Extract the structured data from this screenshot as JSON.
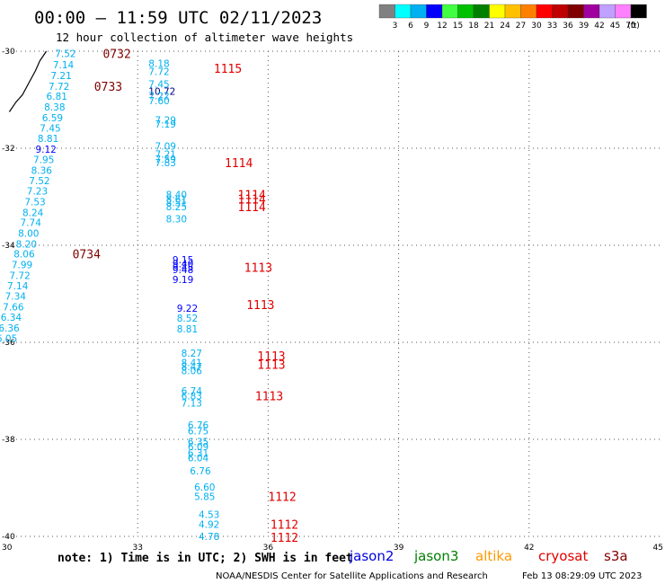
{
  "header": {
    "title": "00:00 – 11:59 UTC 02/11/2023",
    "subtitle": "12 hour collection of altimeter wave heights"
  },
  "colorbar": {
    "colors": [
      "#808080",
      "#00ffff",
      "#00b0f0",
      "#0000ff",
      "#40ff40",
      "#00c000",
      "#008000",
      "#ffff00",
      "#ffc000",
      "#ff8000",
      "#ff0000",
      "#c00000",
      "#800000",
      "#a000a0",
      "#c0a0ff",
      "#ff80ff",
      "#000000"
    ],
    "labels": [
      "3",
      "6",
      "9",
      "12",
      "15",
      "18",
      "21",
      "24",
      "27",
      "30",
      "33",
      "36",
      "39",
      "42",
      "45",
      "70"
    ],
    "unit": "(ft)"
  },
  "footer": {
    "note": "note: 1) Time is in UTC; 2) SWH is in feet",
    "credit": "NOAA/NESDIS Center for Satellite Applications and Research",
    "timestamp": "Feb 13 08:29:09 UTC 2023"
  },
  "legend": [
    {
      "name": "jason2",
      "color": "#0000e0"
    },
    {
      "name": "jason3",
      "color": "#008000"
    },
    {
      "name": "altika",
      "color": "#ff9900"
    },
    {
      "name": "cryosat",
      "color": "#e00000"
    },
    {
      "name": "s3a",
      "color": "#800000"
    }
  ],
  "chart_data": {
    "type": "scatter",
    "x_ticks": [
      "30",
      "33",
      "36",
      "39",
      "42",
      "45"
    ],
    "y_ticks": [
      "-30",
      "-32",
      "-34",
      "-36",
      "-38",
      "-40"
    ],
    "xlim": [
      30,
      45
    ],
    "ylim": [
      -40,
      -30
    ],
    "grid": true,
    "coastline": [
      [
        30.05,
        -31.25
      ],
      [
        30.2,
        -31.05
      ],
      [
        30.35,
        -30.9
      ],
      [
        30.5,
        -30.65
      ],
      [
        30.65,
        -30.4
      ],
      [
        30.75,
        -30.2
      ],
      [
        30.9,
        -30.0
      ]
    ],
    "swh_points": [
      {
        "x": 31.1,
        "y": -30.05,
        "v": "7.52",
        "c": "#00b0f0"
      },
      {
        "x": 31.05,
        "y": -30.28,
        "v": "7.14",
        "c": "#00b0f0"
      },
      {
        "x": 31.0,
        "y": -30.5,
        "v": "7.21",
        "c": "#00b0f0"
      },
      {
        "x": 30.95,
        "y": -30.72,
        "v": "7.72",
        "c": "#00b0f0"
      },
      {
        "x": 30.9,
        "y": -30.93,
        "v": "6.81",
        "c": "#00b0f0"
      },
      {
        "x": 30.85,
        "y": -31.15,
        "v": "8.38",
        "c": "#00b0f0"
      },
      {
        "x": 30.8,
        "y": -31.37,
        "v": "6.59",
        "c": "#00b0f0"
      },
      {
        "x": 30.75,
        "y": -31.58,
        "v": "7.45",
        "c": "#00b0f0"
      },
      {
        "x": 30.7,
        "y": -31.8,
        "v": "8.81",
        "c": "#00b0f0"
      },
      {
        "x": 30.65,
        "y": -32.02,
        "v": "9.12",
        "c": "#0000ff"
      },
      {
        "x": 30.6,
        "y": -32.23,
        "v": "7.95",
        "c": "#00b0f0"
      },
      {
        "x": 30.55,
        "y": -32.45,
        "v": "8.36",
        "c": "#00b0f0"
      },
      {
        "x": 30.5,
        "y": -32.67,
        "v": "7.52",
        "c": "#00b0f0"
      },
      {
        "x": 30.45,
        "y": -32.88,
        "v": "7.23",
        "c": "#00b0f0"
      },
      {
        "x": 30.4,
        "y": -33.1,
        "v": "7.53",
        "c": "#00b0f0"
      },
      {
        "x": 30.35,
        "y": -33.32,
        "v": "8.24",
        "c": "#00b0f0"
      },
      {
        "x": 30.3,
        "y": -33.53,
        "v": "7.74",
        "c": "#00b0f0"
      },
      {
        "x": 30.25,
        "y": -33.75,
        "v": "8.00",
        "c": "#00b0f0"
      },
      {
        "x": 30.2,
        "y": -33.97,
        "v": "8.20",
        "c": "#00b0f0"
      },
      {
        "x": 30.15,
        "y": -34.18,
        "v": "8.06",
        "c": "#00b0f0"
      },
      {
        "x": 30.1,
        "y": -34.4,
        "v": "7.99",
        "c": "#00b0f0"
      },
      {
        "x": 30.05,
        "y": -34.62,
        "v": "7.72",
        "c": "#00b0f0"
      },
      {
        "x": 30.0,
        "y": -34.83,
        "v": "7.14",
        "c": "#00b0f0"
      },
      {
        "x": 29.95,
        "y": -35.05,
        "v": "7.34",
        "c": "#00b0f0"
      },
      {
        "x": 29.9,
        "y": -35.27,
        "v": "7.66",
        "c": "#00b0f0"
      },
      {
        "x": 29.85,
        "y": -35.48,
        "v": "6.34",
        "c": "#00b0f0"
      },
      {
        "x": 29.8,
        "y": -35.7,
        "v": "6.36",
        "c": "#00b0f0"
      },
      {
        "x": 29.75,
        "y": -35.92,
        "v": "6.05",
        "c": "#00b0f0"
      },
      {
        "x": 33.25,
        "y": -30.25,
        "v": "8.18",
        "c": "#00b0f0"
      },
      {
        "x": 33.25,
        "y": -30.42,
        "v": "7.72",
        "c": "#00b0f0"
      },
      {
        "x": 33.25,
        "y": -30.68,
        "v": "7.45",
        "c": "#00b0f0"
      },
      {
        "x": 33.25,
        "y": -30.82,
        "v": "10.72",
        "c": "#000080"
      },
      {
        "x": 33.25,
        "y": -30.92,
        "v": "7.22",
        "c": "#00b0f0"
      },
      {
        "x": 33.25,
        "y": -31.02,
        "v": "7.60",
        "c": "#00b0f0"
      },
      {
        "x": 33.4,
        "y": -31.42,
        "v": "7.29",
        "c": "#00b0f0"
      },
      {
        "x": 33.4,
        "y": -31.5,
        "v": "7.19",
        "c": "#00b0f0"
      },
      {
        "x": 33.4,
        "y": -31.95,
        "v": "7.09",
        "c": "#00b0f0"
      },
      {
        "x": 33.4,
        "y": -32.12,
        "v": "7.21",
        "c": "#00b0f0"
      },
      {
        "x": 33.4,
        "y": -32.22,
        "v": "7.59",
        "c": "#00b0f0"
      },
      {
        "x": 33.4,
        "y": -32.3,
        "v": "7.83",
        "c": "#00b0f0"
      },
      {
        "x": 33.65,
        "y": -32.95,
        "v": "8.40",
        "c": "#00b0f0"
      },
      {
        "x": 33.65,
        "y": -33.05,
        "v": "8.61",
        "c": "#00b0f0"
      },
      {
        "x": 33.65,
        "y": -33.12,
        "v": "8.51",
        "c": "#00b0f0"
      },
      {
        "x": 33.65,
        "y": -33.2,
        "v": "8.25",
        "c": "#00b0f0"
      },
      {
        "x": 33.65,
        "y": -33.45,
        "v": "8.30",
        "c": "#00b0f0"
      },
      {
        "x": 33.8,
        "y": -34.3,
        "v": "9.15",
        "c": "#0000ff"
      },
      {
        "x": 33.8,
        "y": -34.38,
        "v": "9.40",
        "c": "#0000ff"
      },
      {
        "x": 33.8,
        "y": -34.45,
        "v": "9.45",
        "c": "#0000ff"
      },
      {
        "x": 33.8,
        "y": -34.5,
        "v": "9.48",
        "c": "#0000ff"
      },
      {
        "x": 33.8,
        "y": -34.7,
        "v": "9.19",
        "c": "#0000ff"
      },
      {
        "x": 33.9,
        "y": -35.3,
        "v": "9.22",
        "c": "#0000ff"
      },
      {
        "x": 33.9,
        "y": -35.5,
        "v": "8.52",
        "c": "#00b0f0"
      },
      {
        "x": 33.9,
        "y": -35.72,
        "v": "8.81",
        "c": "#00b0f0"
      },
      {
        "x": 34.0,
        "y": -36.22,
        "v": "8.27",
        "c": "#00b0f0"
      },
      {
        "x": 34.0,
        "y": -36.42,
        "v": "8.41",
        "c": "#00b0f0"
      },
      {
        "x": 34.0,
        "y": -36.5,
        "v": "8.47",
        "c": "#00b0f0"
      },
      {
        "x": 34.0,
        "y": -36.58,
        "v": "8.06",
        "c": "#00b0f0"
      },
      {
        "x": 34.0,
        "y": -37.0,
        "v": "6.74",
        "c": "#00b0f0"
      },
      {
        "x": 34.0,
        "y": -37.1,
        "v": "6.83",
        "c": "#00b0f0"
      },
      {
        "x": 34.0,
        "y": -37.25,
        "v": "7.13",
        "c": "#00b0f0"
      },
      {
        "x": 34.15,
        "y": -37.7,
        "v": "6.76",
        "c": "#00b0f0"
      },
      {
        "x": 34.15,
        "y": -37.82,
        "v": "6.75",
        "c": "#00b0f0"
      },
      {
        "x": 34.15,
        "y": -38.05,
        "v": "6.35",
        "c": "#00b0f0"
      },
      {
        "x": 34.15,
        "y": -38.15,
        "v": "6.09",
        "c": "#00b0f0"
      },
      {
        "x": 34.15,
        "y": -38.28,
        "v": "6.31",
        "c": "#00b0f0"
      },
      {
        "x": 34.15,
        "y": -38.38,
        "v": "6.04",
        "c": "#00b0f0"
      },
      {
        "x": 34.2,
        "y": -38.65,
        "v": "6.76",
        "c": "#00b0f0"
      },
      {
        "x": 34.3,
        "y": -38.98,
        "v": "6.60",
        "c": "#00b0f0"
      },
      {
        "x": 34.3,
        "y": -39.18,
        "v": "5.85",
        "c": "#00b0f0"
      },
      {
        "x": 34.4,
        "y": -39.55,
        "v": "4.53",
        "c": "#00b0f0"
      },
      {
        "x": 34.4,
        "y": -39.75,
        "v": "4.92",
        "c": "#00b0f0"
      },
      {
        "x": 34.4,
        "y": -40.0,
        "v": "4.78",
        "c": "#00b0f0"
      }
    ],
    "time_labels": [
      {
        "x": 32.2,
        "y": -30.05,
        "t": "0732",
        "c": "#800000"
      },
      {
        "x": 32.0,
        "y": -30.72,
        "t": "0733",
        "c": "#800000"
      },
      {
        "x": 31.5,
        "y": -34.18,
        "t": "0734",
        "c": "#800000"
      },
      {
        "x": 34.75,
        "y": -30.35,
        "t": "1115",
        "c": "#e00000"
      },
      {
        "x": 35.0,
        "y": -32.3,
        "t": "1114",
        "c": "#e00000"
      },
      {
        "x": 35.3,
        "y": -32.95,
        "t": "1114",
        "c": "#e00000"
      },
      {
        "x": 35.3,
        "y": -33.05,
        "t": "1114",
        "c": "#e00000"
      },
      {
        "x": 35.3,
        "y": -33.2,
        "t": "1114",
        "c": "#e00000"
      },
      {
        "x": 35.45,
        "y": -34.45,
        "t": "1113",
        "c": "#e00000"
      },
      {
        "x": 35.5,
        "y": -35.22,
        "t": "1113",
        "c": "#e00000"
      },
      {
        "x": 35.75,
        "y": -36.28,
        "t": "1113",
        "c": "#e00000"
      },
      {
        "x": 35.75,
        "y": -36.45,
        "t": "1113",
        "c": "#e00000"
      },
      {
        "x": 35.7,
        "y": -37.1,
        "t": "1113",
        "c": "#e00000"
      },
      {
        "x": 36.0,
        "y": -39.18,
        "t": "1112",
        "c": "#e00000"
      },
      {
        "x": 36.05,
        "y": -39.75,
        "t": "1112",
        "c": "#e00000"
      },
      {
        "x": 36.05,
        "y": -40.02,
        "t": "1112",
        "c": "#e00000"
      }
    ]
  }
}
